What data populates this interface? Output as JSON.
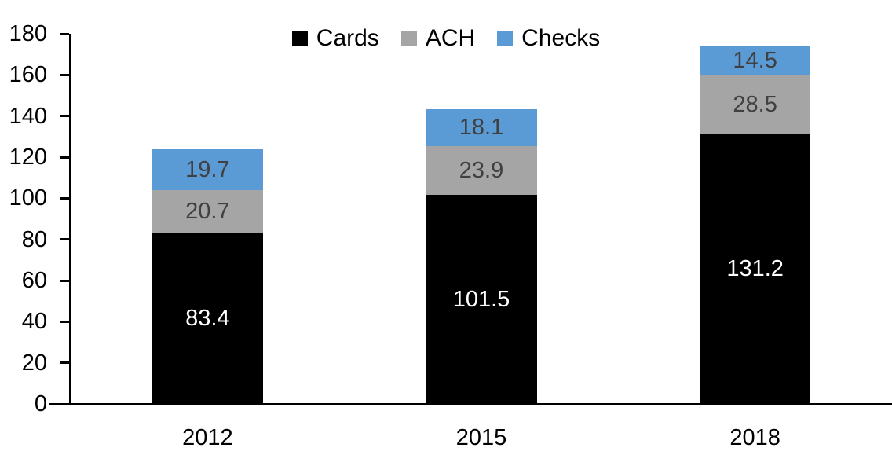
{
  "chart_data": {
    "type": "bar",
    "stacked": true,
    "title": "",
    "categories": [
      "2012",
      "2015",
      "2018"
    ],
    "series": [
      {
        "name": "Cards",
        "color": "#000000",
        "label_color": "#FFFFFF",
        "values": [
          83.4,
          101.5,
          131.2
        ]
      },
      {
        "name": "ACH",
        "color": "#A5A5A5",
        "label_color": "#404040",
        "values": [
          20.7,
          23.9,
          28.5
        ]
      },
      {
        "name": "Checks",
        "color": "#5B9BD5",
        "label_color": "#404040",
        "values": [
          19.7,
          18.1,
          14.5
        ]
      }
    ],
    "y_axis": {
      "min": 0,
      "max": 180,
      "tick_step": 20,
      "tick_labels": [
        "0",
        "20",
        "40",
        "60",
        "80",
        "100",
        "120",
        "140",
        "160",
        "180"
      ]
    },
    "x_axis": {
      "tick_labels": [
        "2012",
        "2015",
        "2018"
      ]
    },
    "legend": {
      "position": "top",
      "entries": [
        "Cards",
        "ACH",
        "Checks"
      ]
    },
    "grid": false,
    "axis_color": "#000000",
    "background": "#FFFFFF"
  }
}
